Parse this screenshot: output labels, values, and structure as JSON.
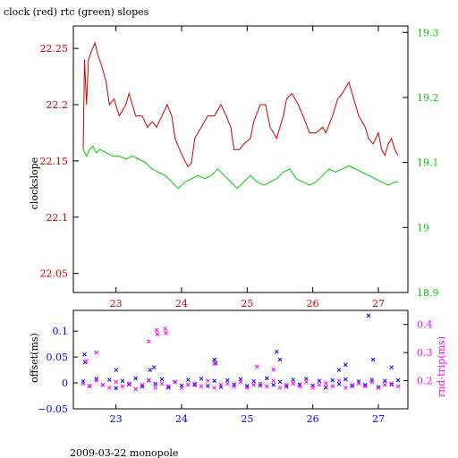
{
  "title": "clock (red) rtc (green) slopes",
  "footer": "2009-03-22 monopole",
  "colors": {
    "red": "#cc0000",
    "green": "#00cc00",
    "blue": "#0000ff",
    "magenta": "#ff00ff",
    "black": "#000000"
  },
  "chart_data": [
    {
      "type": "line",
      "ylabel": "clockslope",
      "xlim": [
        22.35,
        27.45
      ],
      "ylim_left": [
        22.033,
        22.27
      ],
      "ylim_right": [
        18.9,
        19.31
      ],
      "x_ticks": [
        "23",
        "24",
        "25",
        "26",
        "27"
      ],
      "y_left_ticks": [
        "22.25",
        "22.2",
        "22.15",
        "22.1",
        "22.05"
      ],
      "y_right_ticks": [
        "19.3",
        "19.2",
        "19.1",
        "19",
        "18.9"
      ],
      "grid": false,
      "series": [
        {
          "name": "clock",
          "axis": "left",
          "color": "#cc0000",
          "points": [
            [
              22.5,
              22.16
            ],
            [
              22.52,
              22.24
            ],
            [
              22.55,
              22.2
            ],
            [
              22.58,
              22.24
            ],
            [
              22.63,
              22.248
            ],
            [
              22.68,
              22.255
            ],
            [
              22.72,
              22.245
            ],
            [
              22.78,
              22.235
            ],
            [
              22.85,
              22.22
            ],
            [
              22.9,
              22.2
            ],
            [
              22.97,
              22.205
            ],
            [
              23.05,
              22.19
            ],
            [
              23.15,
              22.2
            ],
            [
              23.2,
              22.21
            ],
            [
              23.25,
              22.2
            ],
            [
              23.3,
              22.19
            ],
            [
              23.4,
              22.19
            ],
            [
              23.48,
              22.18
            ],
            [
              23.55,
              22.185
            ],
            [
              23.62,
              22.18
            ],
            [
              23.7,
              22.19
            ],
            [
              23.78,
              22.2
            ],
            [
              23.85,
              22.19
            ],
            [
              23.9,
              22.17
            ],
            [
              23.97,
              22.16
            ],
            [
              24.05,
              22.15
            ],
            [
              24.1,
              22.145
            ],
            [
              24.15,
              22.148
            ],
            [
              24.2,
              22.17
            ],
            [
              24.3,
              22.18
            ],
            [
              24.4,
              22.19
            ],
            [
              24.5,
              22.19
            ],
            [
              24.6,
              22.2
            ],
            [
              24.68,
              22.19
            ],
            [
              24.75,
              22.18
            ],
            [
              24.8,
              22.16
            ],
            [
              24.88,
              22.16
            ],
            [
              24.95,
              22.165
            ],
            [
              25.05,
              22.17
            ],
            [
              25.1,
              22.185
            ],
            [
              25.2,
              22.2
            ],
            [
              25.28,
              22.2
            ],
            [
              25.35,
              22.18
            ],
            [
              25.45,
              22.17
            ],
            [
              25.55,
              22.19
            ],
            [
              25.6,
              22.205
            ],
            [
              25.68,
              22.21
            ],
            [
              25.78,
              22.2
            ],
            [
              25.85,
              22.19
            ],
            [
              25.95,
              22.175
            ],
            [
              26.05,
              22.175
            ],
            [
              26.15,
              22.18
            ],
            [
              26.2,
              22.175
            ],
            [
              26.3,
              22.19
            ],
            [
              26.38,
              22.205
            ],
            [
              26.45,
              22.21
            ],
            [
              26.55,
              22.22
            ],
            [
              26.6,
              22.21
            ],
            [
              26.7,
              22.19
            ],
            [
              26.8,
              22.18
            ],
            [
              26.85,
              22.17
            ],
            [
              26.92,
              22.165
            ],
            [
              27.0,
              22.175
            ],
            [
              27.05,
              22.16
            ],
            [
              27.1,
              22.155
            ],
            [
              27.15,
              22.165
            ],
            [
              27.2,
              22.17
            ],
            [
              27.25,
              22.16
            ],
            [
              27.3,
              22.155
            ]
          ]
        },
        {
          "name": "rtc",
          "axis": "right",
          "color": "#00cc00",
          "points": [
            [
              22.5,
              19.12
            ],
            [
              22.55,
              19.11
            ],
            [
              22.6,
              19.12
            ],
            [
              22.65,
              19.125
            ],
            [
              22.7,
              19.115
            ],
            [
              22.75,
              19.12
            ],
            [
              22.85,
              19.115
            ],
            [
              22.95,
              19.11
            ],
            [
              23.05,
              19.11
            ],
            [
              23.15,
              19.105
            ],
            [
              23.25,
              19.11
            ],
            [
              23.35,
              19.105
            ],
            [
              23.45,
              19.1
            ],
            [
              23.55,
              19.09
            ],
            [
              23.65,
              19.085
            ],
            [
              23.75,
              19.08
            ],
            [
              23.85,
              19.07
            ],
            [
              23.95,
              19.06
            ],
            [
              24.05,
              19.07
            ],
            [
              24.15,
              19.075
            ],
            [
              24.25,
              19.08
            ],
            [
              24.35,
              19.075
            ],
            [
              24.45,
              19.08
            ],
            [
              24.55,
              19.09
            ],
            [
              24.65,
              19.08
            ],
            [
              24.75,
              19.07
            ],
            [
              24.85,
              19.06
            ],
            [
              24.95,
              19.07
            ],
            [
              25.05,
              19.08
            ],
            [
              25.15,
              19.07
            ],
            [
              25.25,
              19.065
            ],
            [
              25.35,
              19.07
            ],
            [
              25.45,
              19.075
            ],
            [
              25.55,
              19.085
            ],
            [
              25.65,
              19.09
            ],
            [
              25.75,
              19.075
            ],
            [
              25.85,
              19.07
            ],
            [
              25.95,
              19.065
            ],
            [
              26.05,
              19.07
            ],
            [
              26.15,
              19.08
            ],
            [
              26.25,
              19.09
            ],
            [
              26.35,
              19.085
            ],
            [
              26.45,
              19.09
            ],
            [
              26.55,
              19.095
            ],
            [
              26.65,
              19.09
            ],
            [
              26.75,
              19.085
            ],
            [
              26.85,
              19.08
            ],
            [
              26.95,
              19.075
            ],
            [
              27.05,
              19.07
            ],
            [
              27.15,
              19.065
            ],
            [
              27.25,
              19.07
            ],
            [
              27.3,
              19.07
            ]
          ]
        }
      ]
    },
    {
      "type": "scatter",
      "ylabel": "offset(ms)",
      "y2label": "rnd-trip(ms)",
      "xlim": [
        22.35,
        27.45
      ],
      "ylim_left": [
        -0.05,
        0.14
      ],
      "ylim_right": [
        0.1,
        0.45
      ],
      "x_ticks": [
        "23",
        "24",
        "25",
        "26",
        "27"
      ],
      "y_left_ticks": [
        "0.1",
        "0.05",
        "0",
        "−0.05"
      ],
      "y_right_ticks": [
        "0.4",
        "0.3",
        "0.2"
      ],
      "grid": false,
      "series": [
        {
          "name": "offset",
          "axis": "left",
          "color": "#0000ff",
          "points": [
            [
              22.5,
              0.003
            ],
            [
              22.6,
              -0.006
            ],
            [
              22.7,
              0.008
            ],
            [
              22.8,
              -0.004
            ],
            [
              22.9,
              0.006
            ],
            [
              23.0,
              -0.01
            ],
            [
              23.1,
              0.004
            ],
            [
              23.2,
              -0.003
            ],
            [
              23.3,
              0.009
            ],
            [
              23.4,
              -0.007
            ],
            [
              23.5,
              0.005
            ],
            [
              23.6,
              -0.002
            ],
            [
              23.7,
              0.007
            ],
            [
              23.8,
              -0.009
            ],
            [
              23.9,
              0.002
            ],
            [
              24.0,
              -0.005
            ],
            [
              24.1,
              0.006
            ],
            [
              24.2,
              -0.004
            ],
            [
              24.3,
              0.008
            ],
            [
              24.4,
              -0.006
            ],
            [
              24.5,
              0.004
            ],
            [
              24.6,
              -0.008
            ],
            [
              24.7,
              0.005
            ],
            [
              24.8,
              -0.003
            ],
            [
              24.9,
              0.007
            ],
            [
              25.0,
              -0.006
            ],
            [
              25.1,
              0.003
            ],
            [
              25.2,
              -0.005
            ],
            [
              25.3,
              0.009
            ],
            [
              25.4,
              -0.004
            ],
            [
              25.5,
              0.002
            ],
            [
              25.6,
              -0.007
            ],
            [
              25.7,
              0.006
            ],
            [
              25.8,
              -0.003
            ],
            [
              25.9,
              0.008
            ],
            [
              26.0,
              -0.005
            ],
            [
              26.1,
              0.004
            ],
            [
              26.2,
              -0.009
            ],
            [
              26.3,
              0.005
            ],
            [
              26.4,
              -0.002
            ],
            [
              26.5,
              0.007
            ],
            [
              26.6,
              -0.006
            ],
            [
              26.7,
              0.003
            ],
            [
              26.8,
              -0.004
            ],
            [
              26.9,
              0.006
            ],
            [
              27.0,
              -0.008
            ],
            [
              27.1,
              0.004
            ],
            [
              27.2,
              -0.003
            ],
            [
              27.3,
              0.005
            ],
            [
              22.52,
              0.055
            ],
            [
              22.53,
              0.04
            ],
            [
              23.0,
              0.025
            ],
            [
              23.52,
              0.025
            ],
            [
              23.58,
              0.03
            ],
            [
              24.5,
              0.045
            ],
            [
              24.52,
              0.038
            ],
            [
              25.45,
              0.06
            ],
            [
              25.5,
              0.045
            ],
            [
              26.4,
              0.025
            ],
            [
              26.5,
              0.035
            ],
            [
              26.85,
              0.13
            ],
            [
              26.92,
              0.045
            ],
            [
              27.2,
              0.03
            ]
          ]
        },
        {
          "name": "rnd-trip",
          "axis": "right",
          "color": "#ff00ff",
          "points": [
            [
              22.5,
              0.19
            ],
            [
              22.6,
              0.18
            ],
            [
              22.7,
              0.2
            ],
            [
              22.8,
              0.185
            ],
            [
              22.9,
              0.175
            ],
            [
              23.0,
              0.195
            ],
            [
              23.1,
              0.18
            ],
            [
              23.2,
              0.19
            ],
            [
              23.3,
              0.17
            ],
            [
              23.4,
              0.185
            ],
            [
              23.5,
              0.2
            ],
            [
              23.6,
              0.175
            ],
            [
              23.7,
              0.19
            ],
            [
              23.8,
              0.18
            ],
            [
              23.9,
              0.195
            ],
            [
              24.0,
              0.175
            ],
            [
              24.1,
              0.185
            ],
            [
              24.2,
              0.19
            ],
            [
              24.3,
              0.18
            ],
            [
              24.4,
              0.2
            ],
            [
              24.5,
              0.175
            ],
            [
              24.6,
              0.185
            ],
            [
              24.7,
              0.19
            ],
            [
              24.8,
              0.18
            ],
            [
              24.9,
              0.195
            ],
            [
              25.0,
              0.175
            ],
            [
              25.1,
              0.185
            ],
            [
              25.2,
              0.19
            ],
            [
              25.3,
              0.18
            ],
            [
              25.4,
              0.2
            ],
            [
              25.5,
              0.175
            ],
            [
              25.6,
              0.185
            ],
            [
              25.7,
              0.19
            ],
            [
              25.8,
              0.18
            ],
            [
              25.9,
              0.195
            ],
            [
              26.0,
              0.175
            ],
            [
              26.1,
              0.185
            ],
            [
              26.2,
              0.19
            ],
            [
              26.3,
              0.18
            ],
            [
              26.4,
              0.2
            ],
            [
              26.5,
              0.175
            ],
            [
              26.6,
              0.185
            ],
            [
              26.7,
              0.19
            ],
            [
              26.8,
              0.18
            ],
            [
              26.9,
              0.195
            ],
            [
              27.0,
              0.175
            ],
            [
              27.1,
              0.185
            ],
            [
              27.2,
              0.19
            ],
            [
              27.3,
              0.18
            ],
            [
              22.55,
              0.27
            ],
            [
              22.7,
              0.3
            ],
            [
              23.5,
              0.34
            ],
            [
              23.62,
              0.38
            ],
            [
              23.63,
              0.365
            ],
            [
              23.75,
              0.385
            ],
            [
              23.76,
              0.37
            ],
            [
              24.5,
              0.26
            ],
            [
              25.15,
              0.25
            ],
            [
              25.4,
              0.24
            ]
          ]
        }
      ]
    }
  ]
}
